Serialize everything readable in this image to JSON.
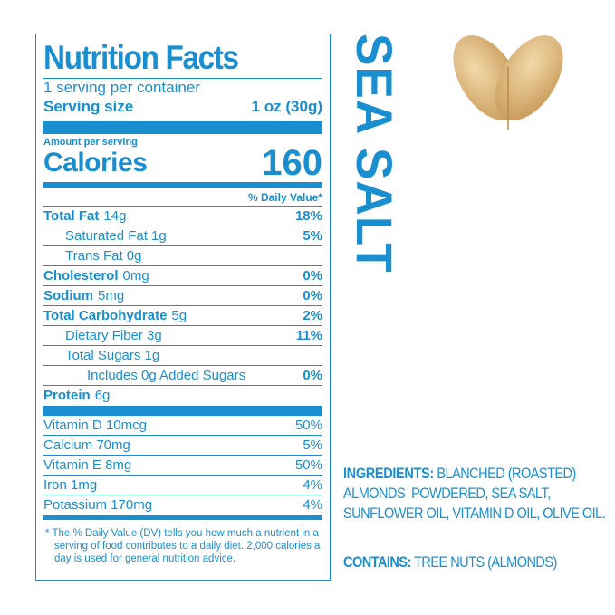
{
  "title": "Nutrition Facts",
  "servings_per_container": "1 serving per container",
  "serving_size": {
    "label": "Serving size",
    "value": "1 oz (30g)"
  },
  "amount_per_serving": "Amount per serving",
  "calories": {
    "label": "Calories",
    "value": "160"
  },
  "daily_value_header": "% Daily Value*",
  "nutrients": [
    {
      "name": "Total Fat",
      "amount": "14g",
      "dv": "18%"
    },
    {
      "name": "Saturated Fat 1g",
      "dv": "5%"
    },
    {
      "name": "Trans Fat 0g",
      "dv": ""
    },
    {
      "name": "Cholesterol",
      "amount": "0mg",
      "dv": "0%"
    },
    {
      "name": "Sodium",
      "amount": "5mg",
      "dv": "0%"
    },
    {
      "name": "Total Carbohydrate",
      "amount": "5g",
      "dv": "2%"
    },
    {
      "name": "Dietary Fiber 3g",
      "dv": "11%"
    },
    {
      "name": "Total Sugars 1g",
      "dv": ""
    },
    {
      "name": "Includes 0g Added Sugars",
      "dv": "0%"
    },
    {
      "name": "Protein",
      "amount": "6g",
      "dv": ""
    }
  ],
  "vitamins": [
    {
      "name": "Vitamin D 10mcg",
      "dv": "50%"
    },
    {
      "name": "Calcium 70mg",
      "dv": "5%"
    },
    {
      "name": "Vitamin E 8mg",
      "dv": "50%"
    },
    {
      "name": "Iron 1mg",
      "dv": "4%"
    },
    {
      "name": "Potassium 170mg",
      "dv": "4%"
    }
  ],
  "footnote": "* The % Daily Value (DV) tells you how much a nutrient in a serving of food contributes to a daily diet. 2,000 calories a day is used for general nutrition advice.",
  "flavor": "SEA SALT",
  "ingredients": {
    "label": "INGREDIENTS:",
    "lines": [
      " BLANCHED (ROASTED)",
      "ALMONDS  POWDERED, SEA SALT,",
      "SUNFLOWER OIL, VITAMIN D OIL, OLIVE OIL."
    ]
  },
  "contains": {
    "label": "CONTAINS:",
    "text": " TREE NUTS (ALMONDS)"
  },
  "colors": {
    "brand": "#1a8fd0"
  },
  "image": "almond-heart"
}
